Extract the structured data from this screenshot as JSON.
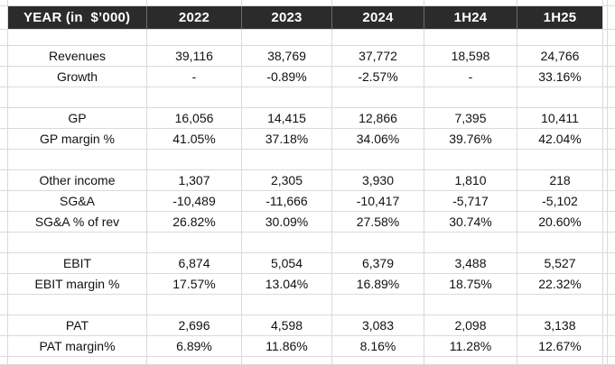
{
  "table": {
    "header": {
      "label": "YEAR (in  $’000)",
      "columns": [
        "2022",
        "2023",
        "2024",
        "1H24",
        "1H25"
      ]
    },
    "rows": [
      {
        "type": "blank",
        "label": "",
        "values": [
          "",
          "",
          "",
          "",
          ""
        ]
      },
      {
        "type": "data",
        "label": "Revenues",
        "values": [
          "39,116",
          "38,769",
          "37,772",
          "18,598",
          "24,766"
        ]
      },
      {
        "type": "data",
        "label": "Growth",
        "values": [
          "-",
          "-0.89%",
          "-2.57%",
          "-",
          "33.16%"
        ]
      },
      {
        "type": "blank",
        "label": "",
        "values": [
          "",
          "",
          "",
          "",
          ""
        ]
      },
      {
        "type": "data",
        "label": "GP",
        "values": [
          "16,056",
          "14,415",
          "12,866",
          "7,395",
          "10,411"
        ]
      },
      {
        "type": "data",
        "label": "GP margin %",
        "values": [
          "41.05%",
          "37.18%",
          "34.06%",
          "39.76%",
          "42.04%"
        ]
      },
      {
        "type": "blank",
        "label": "",
        "values": [
          "",
          "",
          "",
          "",
          ""
        ]
      },
      {
        "type": "data",
        "label": "Other income",
        "values": [
          "1,307",
          "2,305",
          "3,930",
          "1,810",
          "218"
        ]
      },
      {
        "type": "data",
        "label": "SG&A",
        "values": [
          "-10,489",
          "-11,666",
          "-10,417",
          "-5,717",
          "-5,102"
        ]
      },
      {
        "type": "data",
        "label": "SG&A % of rev",
        "values": [
          "26.82%",
          "30.09%",
          "27.58%",
          "30.74%",
          "20.60%"
        ]
      },
      {
        "type": "blank",
        "label": "",
        "values": [
          "",
          "",
          "",
          "",
          ""
        ]
      },
      {
        "type": "data",
        "label": "EBIT",
        "values": [
          "6,874",
          "5,054",
          "6,379",
          "3,488",
          "5,527"
        ]
      },
      {
        "type": "data",
        "label": "EBIT margin %",
        "values": [
          "17.57%",
          "13.04%",
          "16.89%",
          "18.75%",
          "22.32%"
        ]
      },
      {
        "type": "blank",
        "label": "",
        "values": [
          "",
          "",
          "",
          "",
          ""
        ]
      },
      {
        "type": "data",
        "label": "PAT",
        "values": [
          "2,696",
          "4,598",
          "3,083",
          "2,098",
          "3,138"
        ]
      },
      {
        "type": "data",
        "label": "PAT margin%",
        "values": [
          "6.89%",
          "11.86%",
          "8.16%",
          "11.28%",
          "12.67%"
        ]
      }
    ]
  },
  "colors": {
    "header_bg": "#2b2b2b",
    "header_text": "#ffffff",
    "gridline": "#dadada",
    "cell_text": "#111111",
    "background": "#ffffff"
  }
}
